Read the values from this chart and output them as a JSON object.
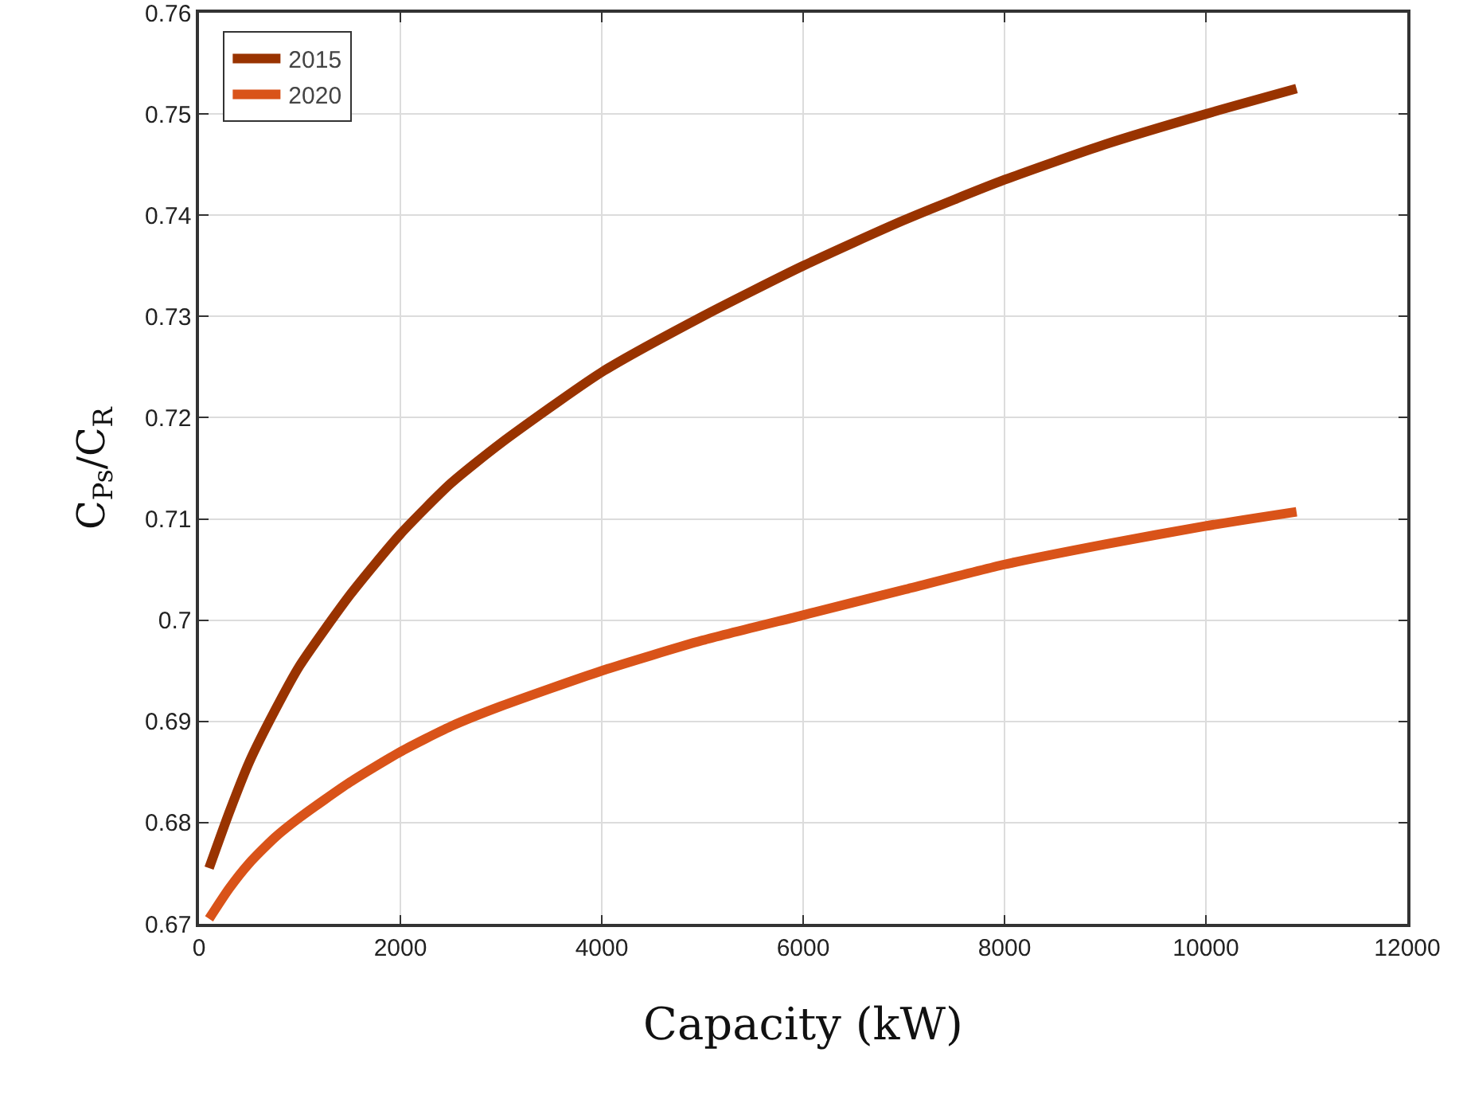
{
  "chart_data": {
    "type": "line",
    "xlabel": "Capacity (kW)",
    "ylabel": "C$_{Ps}$/C$_{R}$",
    "xlim": [
      0,
      12000
    ],
    "xticks": [
      0,
      2000,
      4000,
      6000,
      8000,
      10000,
      12000
    ],
    "ylim": [
      0.67,
      0.76
    ],
    "yticks": [
      0.67,
      0.68,
      0.69,
      0.7,
      0.71,
      0.72,
      0.73,
      0.74,
      0.75,
      0.76
    ],
    "grid": true,
    "legend": "top left",
    "line_style": "solid",
    "marker": "none",
    "series": [
      {
        "name": "2015",
        "color": "#993300",
        "x": [
          100,
          300,
          500,
          750,
          1000,
          1500,
          2000,
          2500,
          3000,
          4000,
          5000,
          6000,
          7000,
          8000,
          9000,
          10000,
          10900
        ],
        "values": [
          0.6755,
          0.681,
          0.686,
          0.691,
          0.6955,
          0.7025,
          0.7085,
          0.7135,
          0.7175,
          0.7245,
          0.73,
          0.735,
          0.7395,
          0.7435,
          0.747,
          0.75,
          0.7525
        ]
      },
      {
        "name": "2020",
        "color": "#d95319",
        "x": [
          100,
          300,
          500,
          750,
          1000,
          1500,
          2000,
          2500,
          3000,
          4000,
          5000,
          6000,
          7000,
          8000,
          9000,
          10000,
          10900
        ],
        "values": [
          0.6705,
          0.6735,
          0.676,
          0.6785,
          0.6805,
          0.684,
          0.687,
          0.6895,
          0.6915,
          0.695,
          0.698,
          0.7005,
          0.703,
          0.7055,
          0.7075,
          0.7093,
          0.7107
        ]
      }
    ]
  }
}
